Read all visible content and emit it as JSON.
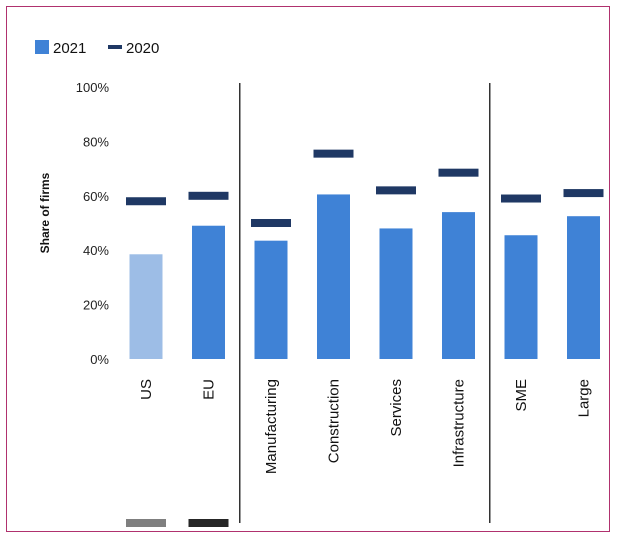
{
  "chart_data": {
    "type": "bar",
    "title": "",
    "xlabel": "",
    "ylabel": "Share of firms",
    "ylim": [
      0,
      100
    ],
    "yticks": [
      "0%",
      "20%",
      "40%",
      "60%",
      "80%",
      "100%"
    ],
    "categories": [
      "US",
      "EU",
      "Manufacturing",
      "Construction",
      "Services",
      "Infrastructure",
      "SME",
      "Large"
    ],
    "legend_position": "top-left",
    "grid": false,
    "series": [
      {
        "name": "2021",
        "kind": "bar",
        "color": "#3f82d6",
        "highlight_color": "#9dbde6",
        "values": [
          38.5,
          49,
          43.5,
          60.5,
          48,
          54,
          45.5,
          52.5
        ]
      },
      {
        "name": "2020",
        "kind": "marker",
        "color": "#1f3864",
        "values": [
          58,
          60,
          50,
          75.5,
          62,
          68.5,
          59,
          61
        ]
      }
    ],
    "group_separators_after": [
      1,
      5
    ],
    "footer_swatch_colors": [
      "#7f7f7f",
      "#262626"
    ]
  }
}
